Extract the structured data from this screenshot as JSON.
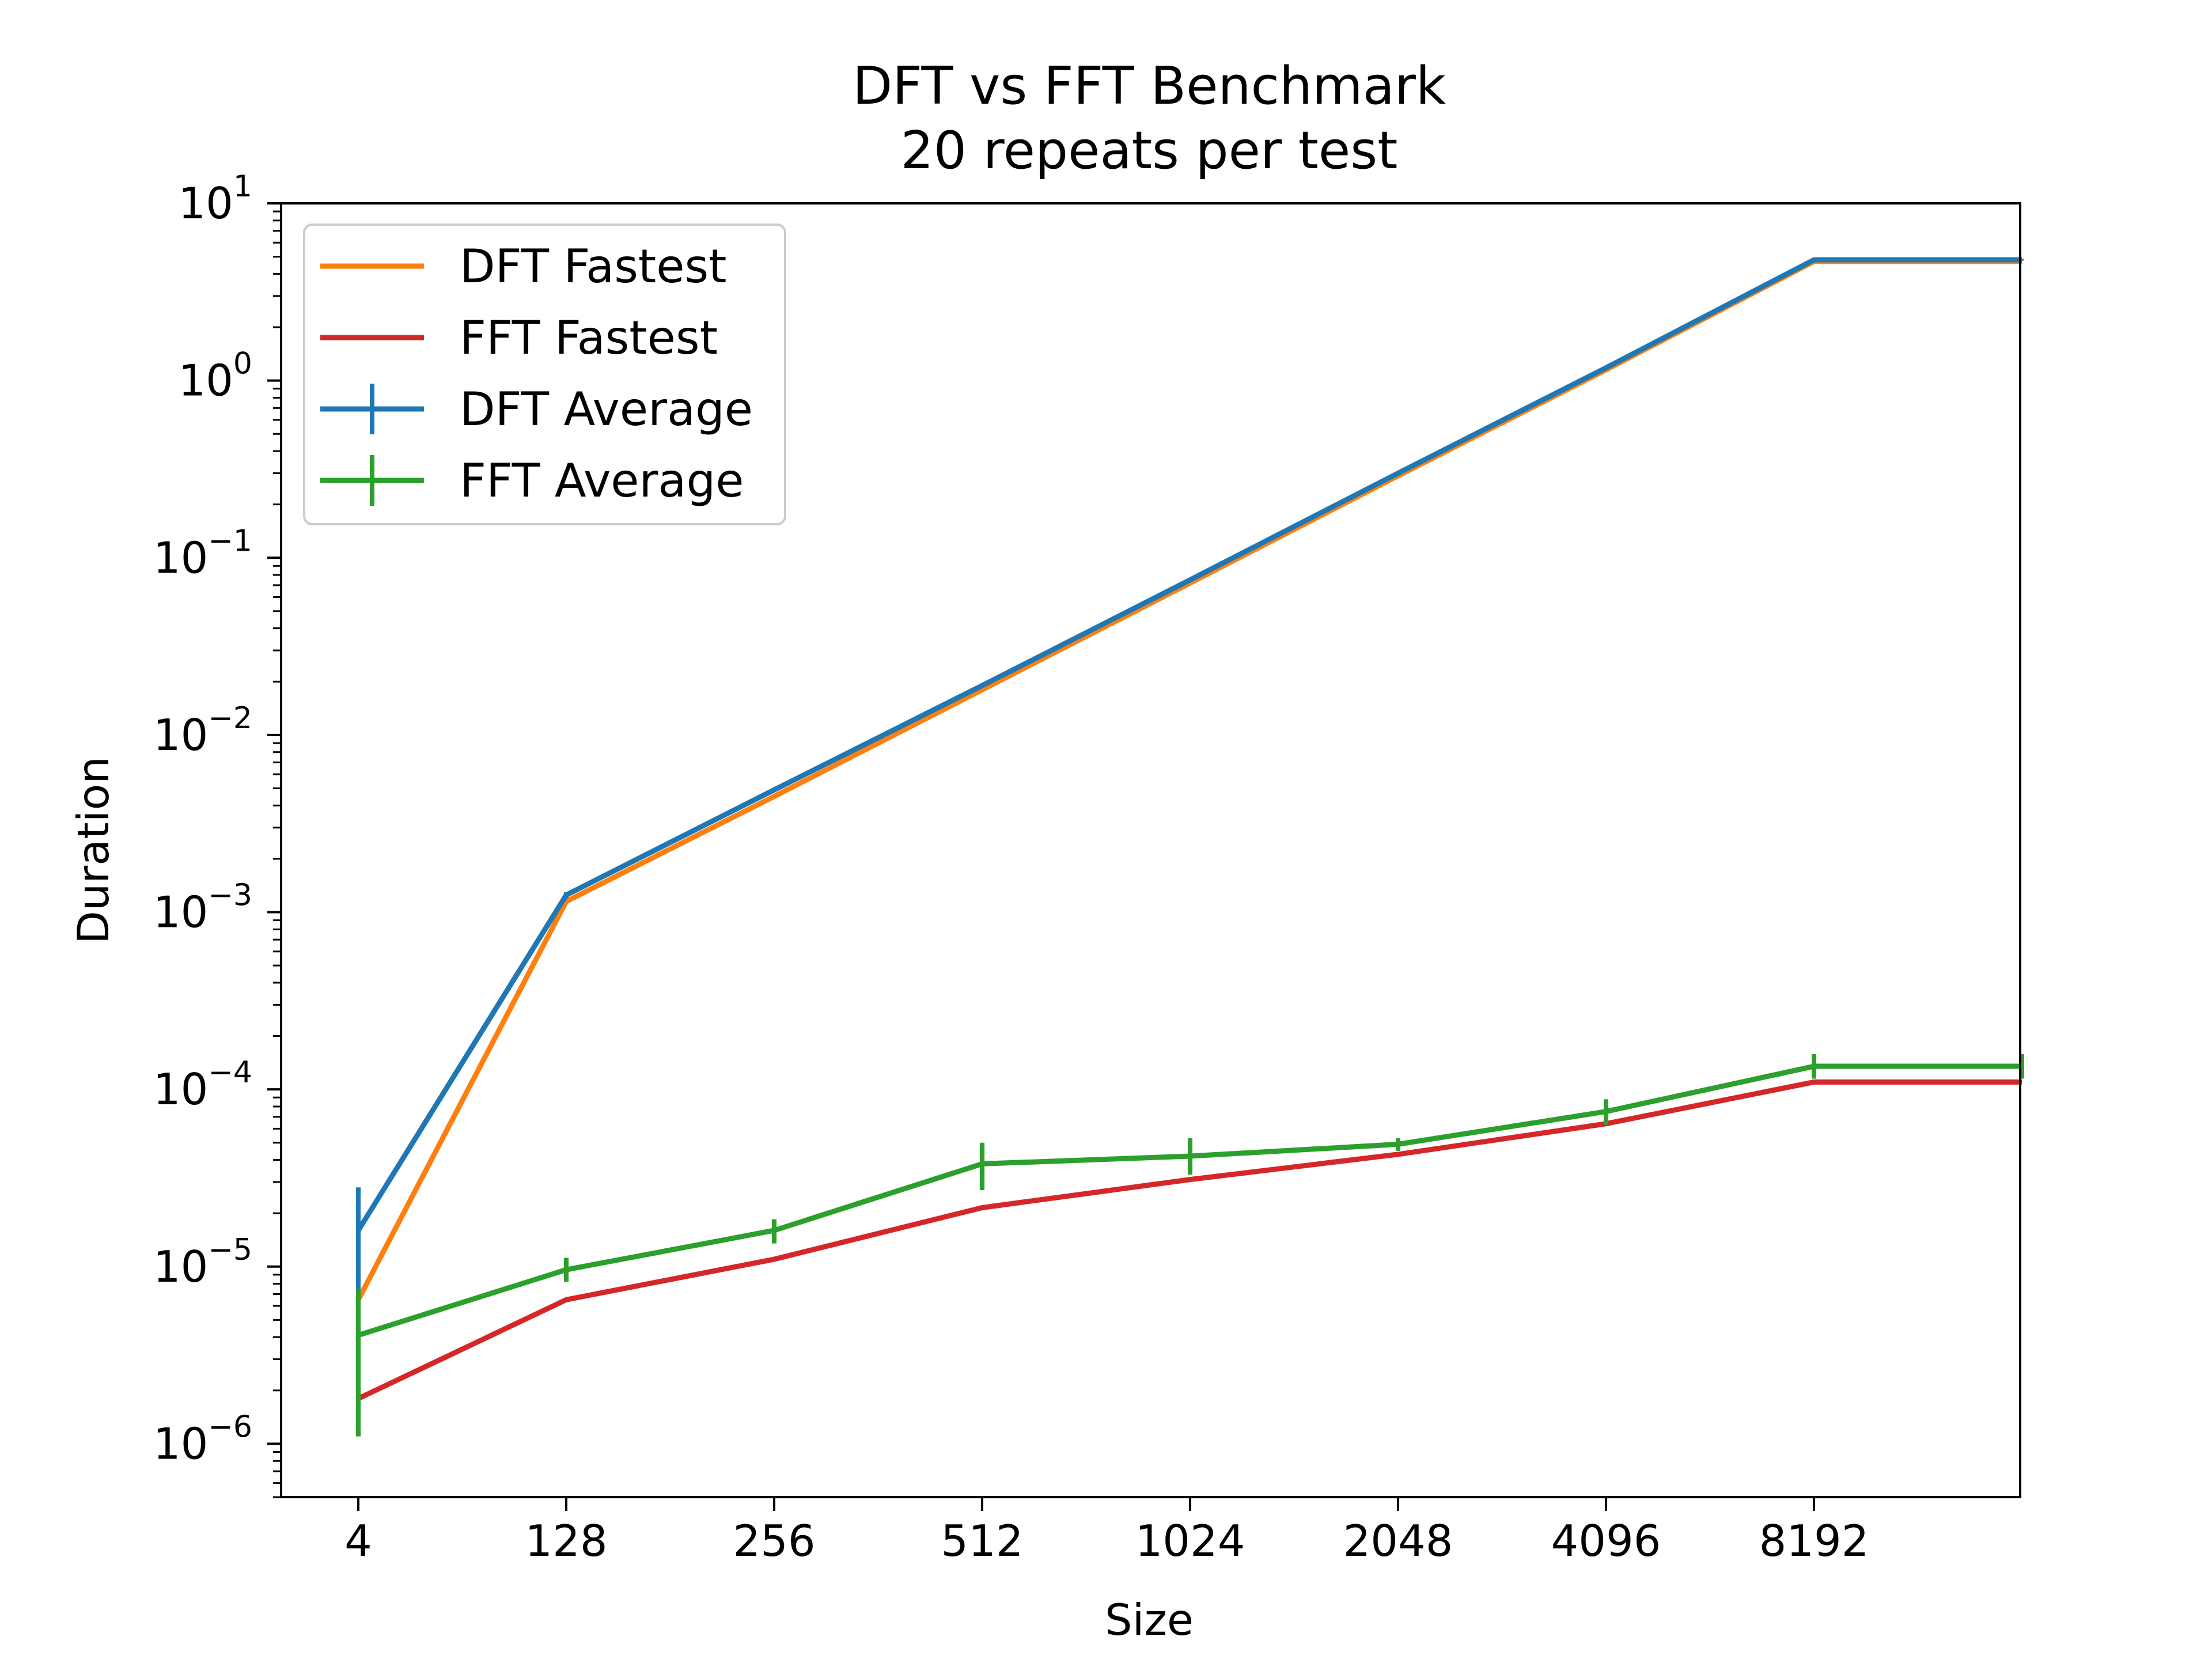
{
  "chart_data": {
    "type": "line",
    "title": "DFT vs FFT Benchmark",
    "subtitle": "20 repeats per test",
    "xlabel": "Size",
    "ylabel": "Duration",
    "yscale": "log",
    "ylim": [
      5e-07,
      10
    ],
    "categories": [
      "4",
      "128",
      "256",
      "512",
      "1024",
      "2048",
      "4096",
      "8192"
    ],
    "y_ticks": [
      {
        "base": "10",
        "exp": "1"
      },
      {
        "base": "10",
        "exp": "0"
      },
      {
        "base": "10",
        "exp": "−1"
      },
      {
        "base": "10",
        "exp": "−2"
      },
      {
        "base": "10",
        "exp": "−3"
      },
      {
        "base": "10",
        "exp": "−4"
      },
      {
        "base": "10",
        "exp": "−5"
      },
      {
        "base": "10",
        "exp": "−6"
      }
    ],
    "series": [
      {
        "name": "DFT Fastest",
        "color": "#ff7f0e",
        "kind": "line",
        "x": [
          4,
          128,
          256,
          512,
          1024,
          2048,
          4096,
          8192,
          16384
        ],
        "y": [
          6.5e-06,
          0.00115,
          0.0045,
          0.018,
          0.072,
          0.29,
          1.15,
          4.7,
          4.7
        ]
      },
      {
        "name": "FFT Fastest",
        "color": "#d62728",
        "kind": "line",
        "x": [
          4,
          128,
          256,
          512,
          1024,
          2048,
          4096,
          8192,
          16384
        ],
        "y": [
          1.8e-06,
          6.5e-06,
          1.1e-05,
          2.15e-05,
          3.1e-05,
          4.3e-05,
          6.4e-05,
          0.00011,
          0.00011
        ]
      },
      {
        "name": "DFT Average",
        "color": "#1f77b4",
        "kind": "errorbar",
        "x": [
          4,
          128,
          256,
          512,
          1024,
          2048,
          4096,
          8192,
          16384
        ],
        "y": [
          1.6e-05,
          0.00125,
          0.0049,
          0.019,
          0.075,
          0.3,
          1.18,
          4.8,
          4.8
        ],
        "err_low": [
          6.5e-06,
          0.0012,
          0.0048,
          0.0188,
          0.074,
          0.298,
          1.17,
          4.75,
          4.75
        ],
        "err_high": [
          2.8e-05,
          0.0013,
          0.005,
          0.0192,
          0.076,
          0.302,
          1.19,
          4.85,
          4.85
        ]
      },
      {
        "name": "FFT Average",
        "color": "#2ca02c",
        "kind": "errorbar",
        "x": [
          4,
          128,
          256,
          512,
          1024,
          2048,
          4096,
          8192,
          16384
        ],
        "y": [
          4.1e-06,
          9.6e-06,
          1.6e-05,
          3.8e-05,
          4.2e-05,
          4.9e-05,
          7.5e-05,
          0.000135,
          0.000135
        ],
        "err_low": [
          1.1e-06,
          8.2e-06,
          1.35e-05,
          2.7e-05,
          3.3e-05,
          4.5e-05,
          6.3e-05,
          0.000115,
          0.000115
        ],
        "err_high": [
          7.5e-06,
          1.12e-05,
          1.85e-05,
          5e-05,
          5.3e-05,
          5.3e-05,
          8.8e-05,
          0.000158,
          0.000158
        ]
      }
    ],
    "legend": {
      "position": "top-left",
      "entries": [
        "DFT Fastest",
        "FFT Fastest",
        "DFT Average",
        "FFT Average"
      ]
    },
    "grid": false
  }
}
